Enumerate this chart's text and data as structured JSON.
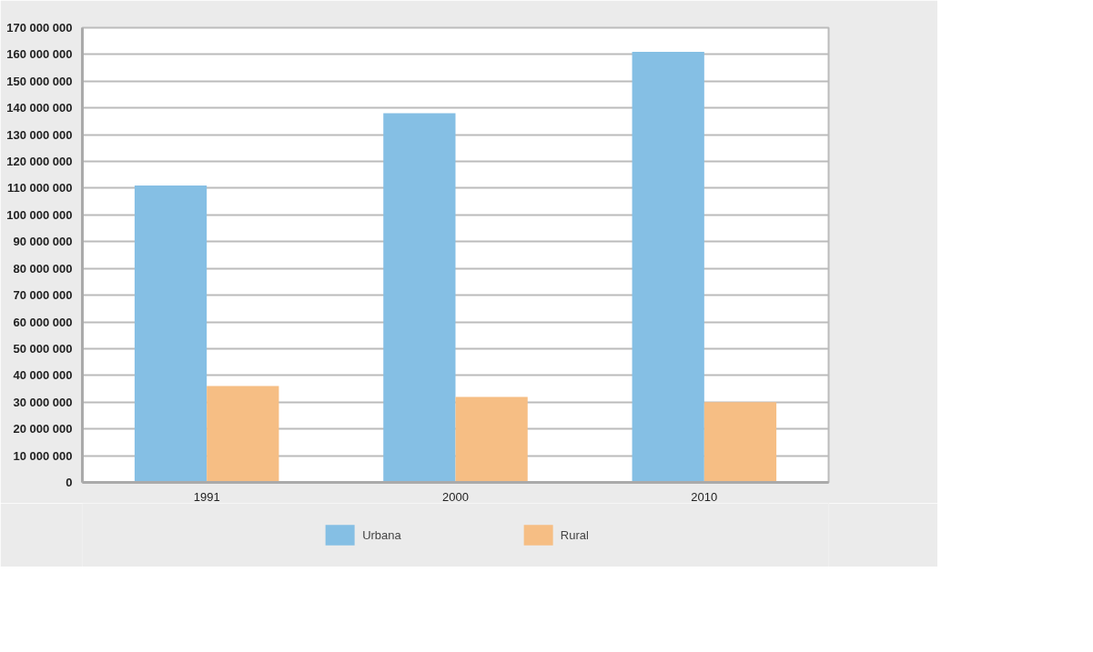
{
  "chart_data": {
    "type": "bar",
    "categories": [
      "1991",
      "2000",
      "2010"
    ],
    "series": [
      {
        "name": "Urbana",
        "color": "#85bfe4",
        "values": [
          111000000,
          138000000,
          161000000
        ]
      },
      {
        "name": "Rural",
        "color": "#f6be84",
        "values": [
          36000000,
          32000000,
          30000000
        ]
      }
    ],
    "ylim": [
      0,
      170000000
    ],
    "yticks": [
      {
        "value": 0,
        "label": "0"
      },
      {
        "value": 10000000,
        "label": "10 000 000"
      },
      {
        "value": 20000000,
        "label": "20 000 000"
      },
      {
        "value": 30000000,
        "label": "30 000 000"
      },
      {
        "value": 40000000,
        "label": "40 000 000"
      },
      {
        "value": 50000000,
        "label": "50 000 000"
      },
      {
        "value": 60000000,
        "label": "60 000 000"
      },
      {
        "value": 70000000,
        "label": "70 000 000"
      },
      {
        "value": 80000000,
        "label": "80 000 000"
      },
      {
        "value": 90000000,
        "label": "90 000 000"
      },
      {
        "value": 100000000,
        "label": "100 000 000"
      },
      {
        "value": 110000000,
        "label": "110 000 000"
      },
      {
        "value": 120000000,
        "label": "120 000 000"
      },
      {
        "value": 130000000,
        "label": "130 000 000"
      },
      {
        "value": 140000000,
        "label": "140 000 000"
      },
      {
        "value": 150000000,
        "label": "150 000 000"
      },
      {
        "value": 160000000,
        "label": "160 000 000"
      },
      {
        "value": 170000000,
        "label": "170 000 000"
      }
    ],
    "grid": "y",
    "legend": "bottom"
  }
}
